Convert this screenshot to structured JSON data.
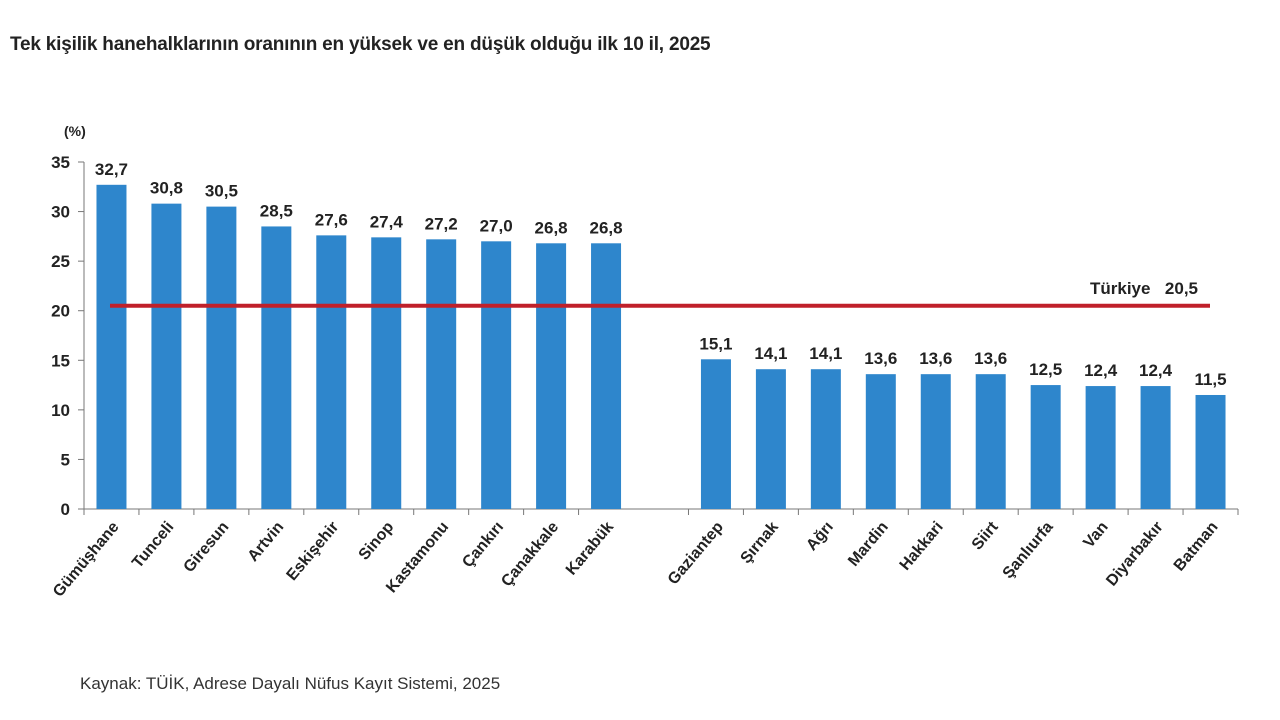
{
  "chart_data": {
    "type": "bar",
    "title": "Tek kişilik hanehalklarının oranının en yüksek ve en düşük olduğu ilk 10 il, 2025",
    "ylabel": "(%)",
    "ylim": [
      0,
      35
    ],
    "yticks": [
      "0",
      "5",
      "10",
      "15",
      "20",
      "25",
      "30",
      "35"
    ],
    "grid": false,
    "bar_color": "#2e86cc",
    "groups": [
      {
        "categories": [
          "Gümüşhane",
          "Tunceli",
          "Giresun",
          "Artvin",
          "Eskişehir",
          "Sinop",
          "Kastamonu",
          "Çankırı",
          "Çanakkale",
          "Karabük"
        ],
        "values": [
          32.7,
          30.8,
          30.5,
          28.5,
          27.6,
          27.4,
          27.2,
          27.0,
          26.8,
          26.8
        ],
        "labels": [
          "32,7",
          "30,8",
          "30,5",
          "28,5",
          "27,6",
          "27,4",
          "27,2",
          "27,0",
          "26,8",
          "26,8"
        ]
      },
      {
        "categories": [
          "Gaziantep",
          "Şırnak",
          "Ağrı",
          "Mardin",
          "Hakkari",
          "Siirt",
          "Şanlıurfa",
          "Van",
          "Diyarbakır",
          "Batman"
        ],
        "values": [
          15.1,
          14.1,
          14.1,
          13.6,
          13.6,
          13.6,
          12.5,
          12.4,
          12.4,
          11.5
        ],
        "labels": [
          "15,1",
          "14,1",
          "14,1",
          "13,6",
          "13,6",
          "13,6",
          "12,5",
          "12,4",
          "12,4",
          "11,5"
        ]
      }
    ],
    "reference_line": {
      "label": "Türkiye",
      "value": 20.5,
      "value_label": "20,5",
      "color": "#c0202a"
    }
  },
  "source": "Kaynak: TÜİK, Adrese Dayalı Nüfus Kayıt Sistemi, 2025"
}
